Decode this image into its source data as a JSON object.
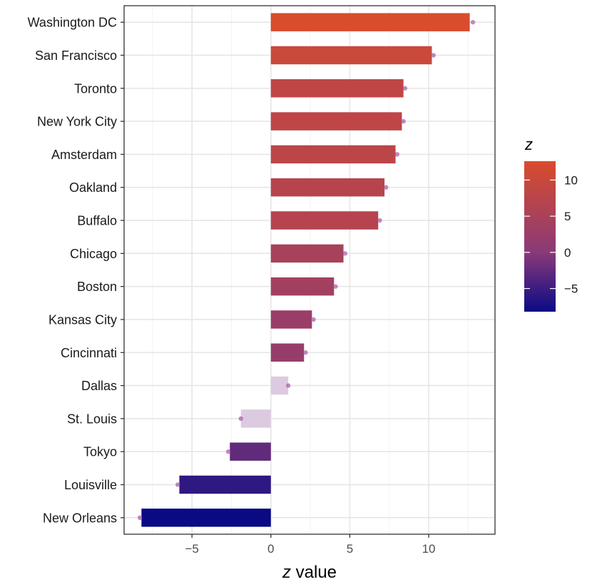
{
  "chart_data": {
    "type": "bar",
    "orientation": "horizontal",
    "categories": [
      "Washington DC",
      "San Francisco",
      "Toronto",
      "New York City",
      "Amsterdam",
      "Oakland",
      "Buffalo",
      "Chicago",
      "Boston",
      "Kansas City",
      "Cincinnati",
      "Dallas",
      "St. Louis",
      "Tokyo",
      "Louisville",
      "New Orleans"
    ],
    "values": [
      12.6,
      10.2,
      8.4,
      8.3,
      7.9,
      7.2,
      6.8,
      4.6,
      4.0,
      2.6,
      2.1,
      1.1,
      -1.9,
      -2.6,
      -5.8,
      -8.2
    ],
    "points": [
      12.8,
      10.3,
      8.5,
      8.4,
      8.0,
      7.3,
      6.9,
      4.7,
      4.1,
      2.7,
      2.2,
      1.1,
      -1.9,
      -2.7,
      -5.9,
      -8.3
    ],
    "faded": [
      false,
      false,
      false,
      false,
      false,
      false,
      false,
      false,
      false,
      false,
      false,
      true,
      true,
      false,
      false,
      false
    ],
    "xlabel": "z value",
    "xlim": [
      -9.3,
      14.2
    ],
    "xticks": [
      -5,
      0,
      5,
      10
    ],
    "xtick_labels": [
      "−5",
      "0",
      "5",
      "10"
    ],
    "grid": true,
    "legend": {
      "title": "z",
      "placement": "right",
      "ticks": [
        10,
        5,
        0,
        -5
      ],
      "tick_labels": [
        "10",
        "5",
        "0",
        "−5"
      ],
      "range": [
        -8.2,
        12.6
      ],
      "colors": {
        "low": "#0a0a85",
        "mid": "#8a3a78",
        "high": "#d94c2c"
      }
    },
    "colors": {
      "faded": "#dccbe0",
      "point": "#a858a8",
      "panel_border": "#333333",
      "grid_major": "#e6e6e6",
      "grid_minor": "#f2f2f2"
    }
  }
}
